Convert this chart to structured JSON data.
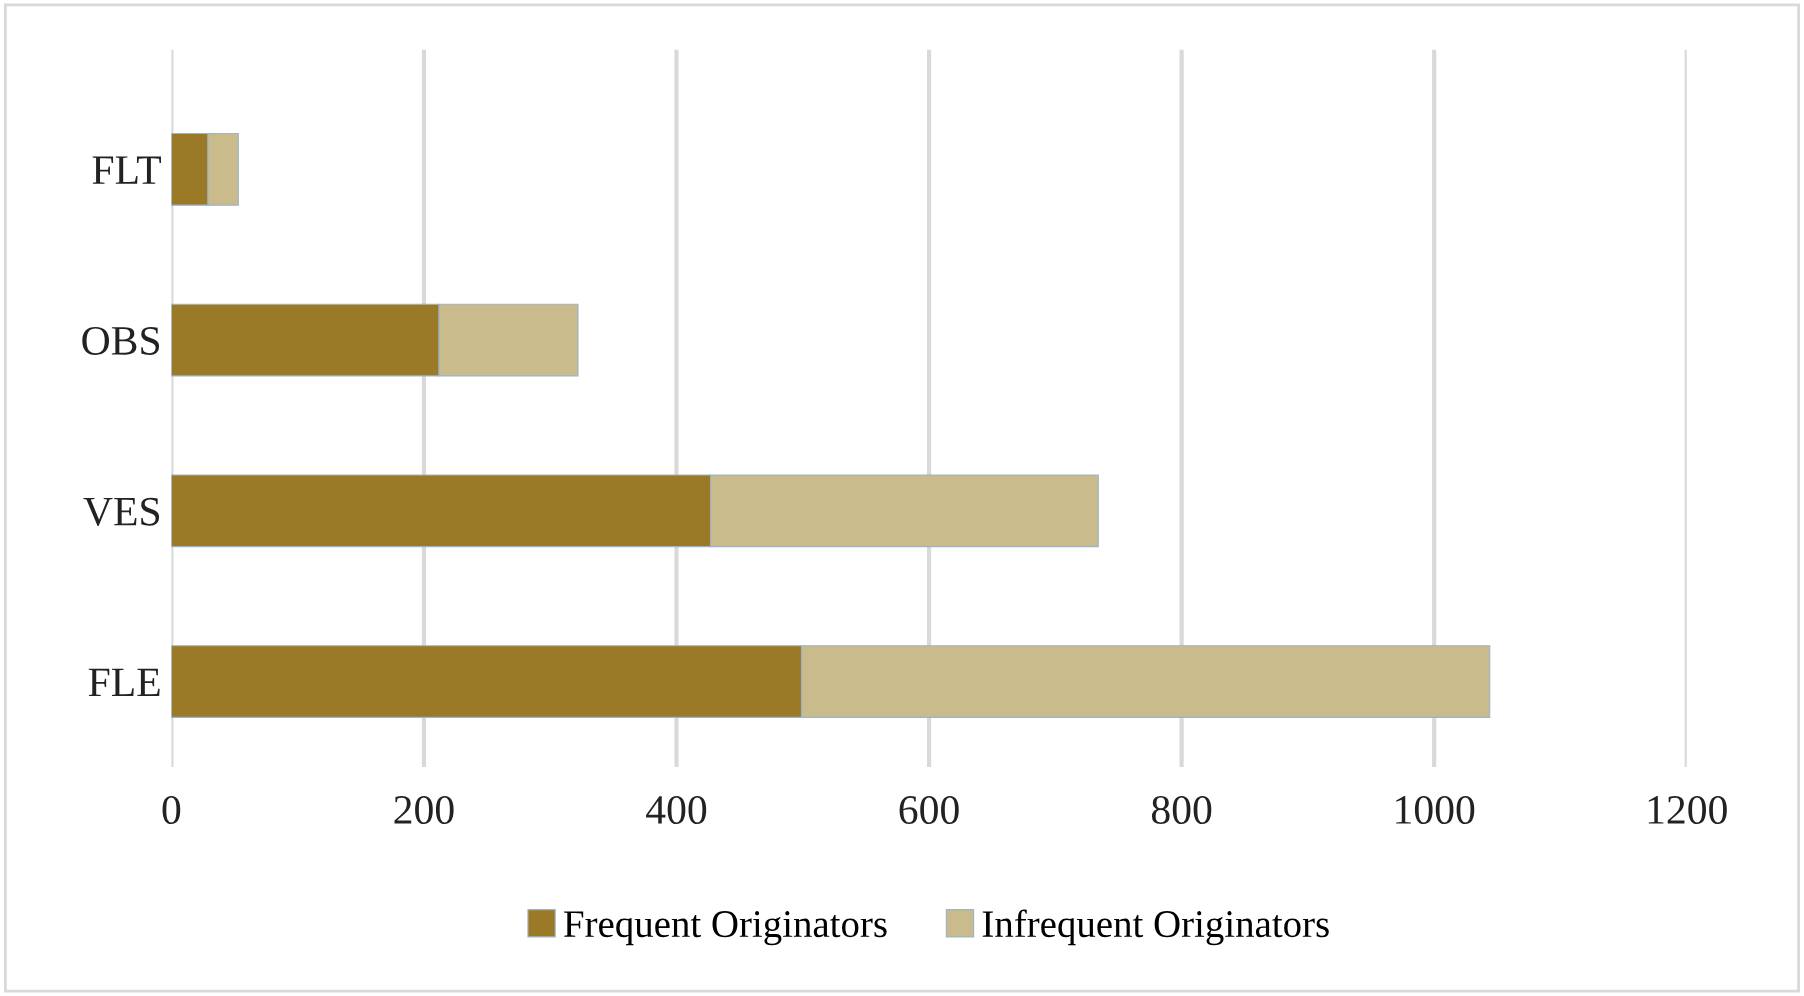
{
  "chart_data": {
    "type": "bar",
    "orientation": "horizontal",
    "stacked": true,
    "categories": [
      "FLT",
      "OBS",
      "VES",
      "FLE"
    ],
    "series": [
      {
        "name": "Frequent Originators",
        "color": "#9a7a27",
        "values": [
          29,
          212,
          427,
          499
        ]
      },
      {
        "name": "Infrequent Originators",
        "color": "#c9bb8b",
        "values": [
          24,
          110,
          307,
          545
        ]
      }
    ],
    "xlim": [
      0,
      1200
    ],
    "xticks": [
      0,
      200,
      400,
      600,
      800,
      1000,
      1200
    ],
    "grid": "x",
    "legend": "bottom"
  }
}
